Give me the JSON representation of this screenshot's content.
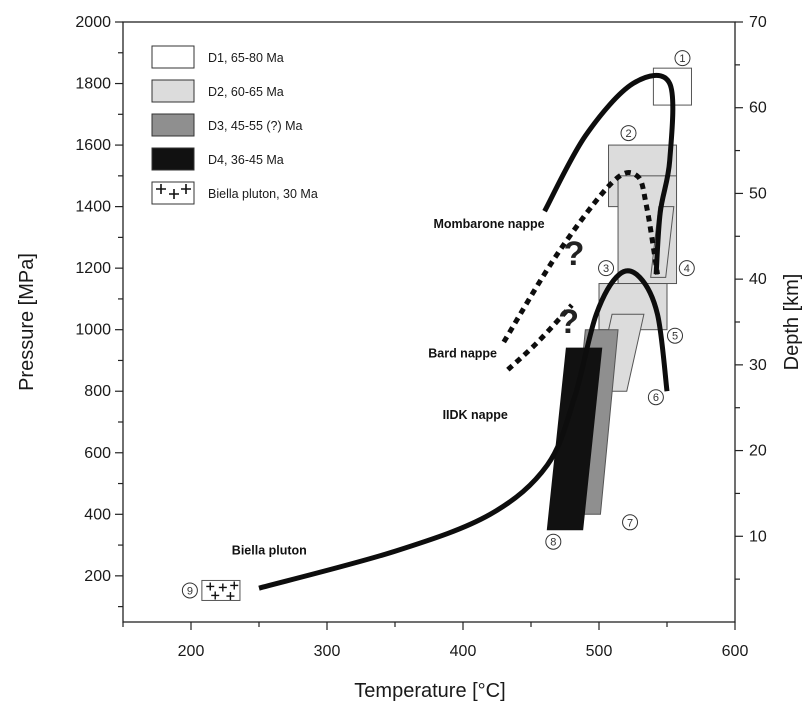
{
  "chart_data": {
    "type": "scatter",
    "xlabel": "Temperature [°C]",
    "ylabel": "Pressure [MPa]",
    "y2label": "Depth [km]",
    "xlim": [
      150,
      600
    ],
    "ylim": [
      50,
      2000
    ],
    "y2lim": [
      0,
      70
    ],
    "xticks": [
      200,
      300,
      400,
      500,
      600
    ],
    "yticks": [
      200,
      400,
      600,
      800,
      1000,
      1200,
      1400,
      1600,
      1800,
      2000
    ],
    "y2ticks": [
      10,
      20,
      30,
      40,
      50,
      60,
      70
    ],
    "grid": false,
    "legend_position": "top-left",
    "legend": [
      {
        "label": "D1, 65-80 Ma",
        "fill": "#ffffff"
      },
      {
        "label": "D2, 60-65 Ma",
        "fill": "#dcdcdc"
      },
      {
        "label": "D3, 45-55 (?) Ma",
        "fill": "#8f8f8f"
      },
      {
        "label": "D4, 36-45 Ma",
        "fill": "#111111"
      },
      {
        "label": "Biella pluton, 30 Ma",
        "fill": "#ffffff",
        "pattern": "crosses"
      }
    ],
    "boxes": [
      {
        "id": "1",
        "stage": "D1",
        "xmin": 540,
        "xmax": 568,
        "ymin": 1730,
        "ymax": 1850
      },
      {
        "id": "2",
        "stage": "D2",
        "xmin": 507,
        "xmax": 557,
        "ymin": 1400,
        "ymax": 1600
      },
      {
        "id": "3",
        "stage": "D2",
        "xmin": 514,
        "xmax": 557,
        "ymin": 1150,
        "ymax": 1500
      },
      {
        "id": "4",
        "stage": "D2",
        "xmin": 538,
        "xmax": 555,
        "ymin": 1170,
        "ymax": 1400,
        "shape": "parallelogram"
      },
      {
        "id": "5",
        "stage": "D2",
        "xmin": 500,
        "xmax": 550,
        "ymin": 1000,
        "ymax": 1150
      },
      {
        "id": "6",
        "stage": "D2",
        "xmin": 497,
        "xmax": 533,
        "ymin": 800,
        "ymax": 1050,
        "shape": "parallelogram"
      },
      {
        "id": "7",
        "stage": "D3",
        "xmin": 477,
        "xmax": 514,
        "ymin": 400,
        "ymax": 1000,
        "shape": "parallelogram"
      },
      {
        "id": "8",
        "stage": "D4",
        "xmin": 462,
        "xmax": 502,
        "ymin": 350,
        "ymax": 940,
        "shape": "parallelogram"
      },
      {
        "id": "9",
        "stage": "Biella",
        "xmin": 208,
        "xmax": 236,
        "ymin": 120,
        "ymax": 185
      }
    ],
    "paths": [
      {
        "name": "Mombarone nappe",
        "style": "solid",
        "points": [
          [
            460,
            1385
          ],
          [
            490,
            1630
          ],
          [
            525,
            1800
          ],
          [
            552,
            1800
          ],
          [
            552,
            1550
          ],
          [
            545,
            1380
          ],
          [
            542,
            1180
          ]
        ]
      },
      {
        "name": "Bard nappe",
        "style": "dashed",
        "points": [
          [
            430,
            960
          ],
          [
            470,
            1250
          ],
          [
            510,
            1480
          ],
          [
            528,
            1500
          ],
          [
            535,
            1400
          ],
          [
            543,
            1180
          ]
        ]
      },
      {
        "name": "IIDK nappe",
        "style": "solid",
        "points": [
          [
            250,
            160
          ],
          [
            350,
            280
          ],
          [
            420,
            400
          ],
          [
            462,
            560
          ],
          [
            482,
            780
          ],
          [
            498,
            1050
          ],
          [
            515,
            1180
          ],
          [
            530,
            1170
          ],
          [
            543,
            1050
          ],
          [
            550,
            800
          ]
        ]
      },
      {
        "name": "IIDK nappe",
        "style": "dashed",
        "points": [
          [
            433,
            870
          ],
          [
            455,
            960
          ],
          [
            480,
            1080
          ]
        ]
      }
    ],
    "annotations": [
      {
        "text": "Mombarone nappe",
        "x": 460,
        "y": 1330
      },
      {
        "text": "Bard nappe",
        "x": 425,
        "y": 910
      },
      {
        "text": "IIDK nappe",
        "x": 433,
        "y": 710
      },
      {
        "text": "Biella pluton",
        "x": 230,
        "y": 270
      },
      {
        "text": "?",
        "x": 474,
        "y": 1210
      },
      {
        "text": "?",
        "x": 470,
        "y": 990
      }
    ]
  }
}
